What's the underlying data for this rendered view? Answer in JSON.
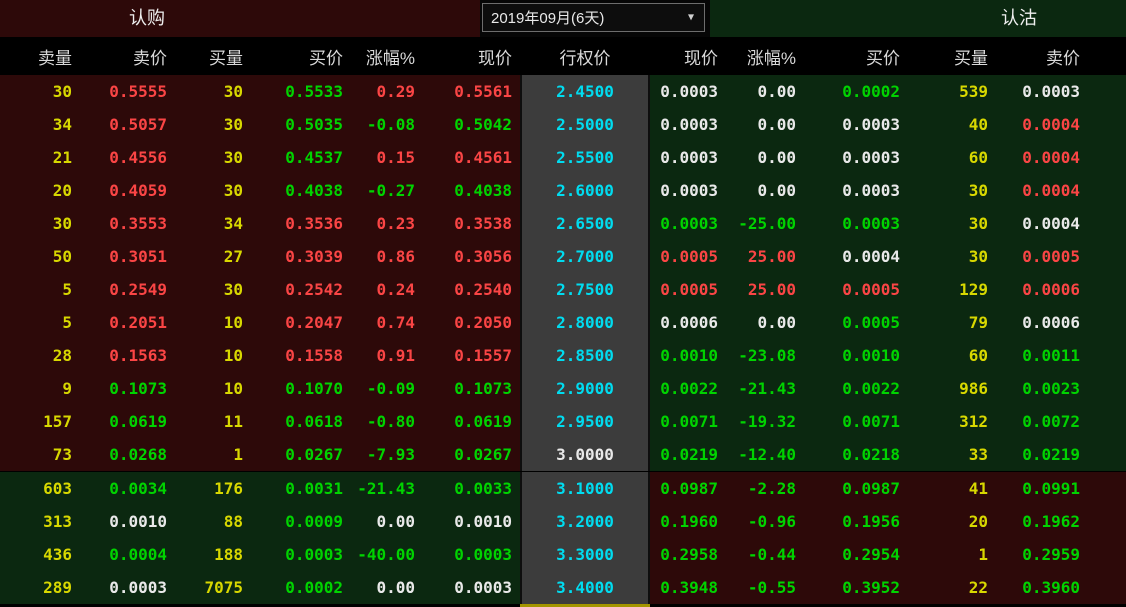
{
  "titles": {
    "call": "认购",
    "put": "认沽"
  },
  "dropdown": {
    "value": "2019年09月(6天)",
    "arrow": "▼"
  },
  "headers": {
    "left": [
      "卖量",
      "卖价",
      "买量",
      "买价",
      "涨幅%",
      "现价"
    ],
    "strike": "行权价",
    "right": [
      "现价",
      "涨幅%",
      "买价",
      "买量",
      "卖价"
    ]
  },
  "colors": {
    "text": {
      "yellow": "#d8d800",
      "red": "#fa4545",
      "green": "#00d300",
      "white": "#e9e9e9",
      "cyan": "#00dcf0"
    },
    "bg": {
      "call_zone": "#2d0909",
      "put_zone": "#0b2810",
      "strike_column": "#3c3c3c",
      "header": "#000000"
    },
    "scroll_indicator": "#a39500"
  },
  "rows": [
    {
      "strike": "2.4500",
      "strike_color": "cyan",
      "zone": "upper",
      "call": [
        [
          "30",
          "yellow"
        ],
        [
          "0.5555",
          "red"
        ],
        [
          "30",
          "yellow"
        ],
        [
          "0.5533",
          "green"
        ],
        [
          "0.29",
          "red"
        ],
        [
          "0.5561",
          "red"
        ]
      ],
      "put": [
        [
          "0.0003",
          "white"
        ],
        [
          "0.00",
          "white"
        ],
        [
          "0.0002",
          "green"
        ],
        [
          "539",
          "yellow"
        ],
        [
          "0.0003",
          "white"
        ]
      ]
    },
    {
      "strike": "2.5000",
      "strike_color": "cyan",
      "zone": "upper",
      "call": [
        [
          "34",
          "yellow"
        ],
        [
          "0.5057",
          "red"
        ],
        [
          "30",
          "yellow"
        ],
        [
          "0.5035",
          "green"
        ],
        [
          "-0.08",
          "green"
        ],
        [
          "0.5042",
          "green"
        ]
      ],
      "put": [
        [
          "0.0003",
          "white"
        ],
        [
          "0.00",
          "white"
        ],
        [
          "0.0003",
          "white"
        ],
        [
          "40",
          "yellow"
        ],
        [
          "0.0004",
          "red"
        ]
      ]
    },
    {
      "strike": "2.5500",
      "strike_color": "cyan",
      "zone": "upper",
      "call": [
        [
          "21",
          "yellow"
        ],
        [
          "0.4556",
          "red"
        ],
        [
          "30",
          "yellow"
        ],
        [
          "0.4537",
          "green"
        ],
        [
          "0.15",
          "red"
        ],
        [
          "0.4561",
          "red"
        ]
      ],
      "put": [
        [
          "0.0003",
          "white"
        ],
        [
          "0.00",
          "white"
        ],
        [
          "0.0003",
          "white"
        ],
        [
          "60",
          "yellow"
        ],
        [
          "0.0004",
          "red"
        ]
      ]
    },
    {
      "strike": "2.6000",
      "strike_color": "cyan",
      "zone": "upper",
      "call": [
        [
          "20",
          "yellow"
        ],
        [
          "0.4059",
          "red"
        ],
        [
          "30",
          "yellow"
        ],
        [
          "0.4038",
          "green"
        ],
        [
          "-0.27",
          "green"
        ],
        [
          "0.4038",
          "green"
        ]
      ],
      "put": [
        [
          "0.0003",
          "white"
        ],
        [
          "0.00",
          "white"
        ],
        [
          "0.0003",
          "white"
        ],
        [
          "30",
          "yellow"
        ],
        [
          "0.0004",
          "red"
        ]
      ]
    },
    {
      "strike": "2.6500",
      "strike_color": "cyan",
      "zone": "upper",
      "call": [
        [
          "30",
          "yellow"
        ],
        [
          "0.3553",
          "red"
        ],
        [
          "34",
          "yellow"
        ],
        [
          "0.3536",
          "red"
        ],
        [
          "0.23",
          "red"
        ],
        [
          "0.3538",
          "red"
        ]
      ],
      "put": [
        [
          "0.0003",
          "green"
        ],
        [
          "-25.00",
          "green"
        ],
        [
          "0.0003",
          "green"
        ],
        [
          "30",
          "yellow"
        ],
        [
          "0.0004",
          "white"
        ]
      ]
    },
    {
      "strike": "2.7000",
      "strike_color": "cyan",
      "zone": "upper",
      "call": [
        [
          "50",
          "yellow"
        ],
        [
          "0.3051",
          "red"
        ],
        [
          "27",
          "yellow"
        ],
        [
          "0.3039",
          "red"
        ],
        [
          "0.86",
          "red"
        ],
        [
          "0.3056",
          "red"
        ]
      ],
      "put": [
        [
          "0.0005",
          "red"
        ],
        [
          "25.00",
          "red"
        ],
        [
          "0.0004",
          "white"
        ],
        [
          "30",
          "yellow"
        ],
        [
          "0.0005",
          "red"
        ]
      ]
    },
    {
      "strike": "2.7500",
      "strike_color": "cyan",
      "zone": "upper",
      "call": [
        [
          "5",
          "yellow"
        ],
        [
          "0.2549",
          "red"
        ],
        [
          "30",
          "yellow"
        ],
        [
          "0.2542",
          "red"
        ],
        [
          "0.24",
          "red"
        ],
        [
          "0.2540",
          "red"
        ]
      ],
      "put": [
        [
          "0.0005",
          "red"
        ],
        [
          "25.00",
          "red"
        ],
        [
          "0.0005",
          "red"
        ],
        [
          "129",
          "yellow"
        ],
        [
          "0.0006",
          "red"
        ]
      ]
    },
    {
      "strike": "2.8000",
      "strike_color": "cyan",
      "zone": "upper",
      "call": [
        [
          "5",
          "yellow"
        ],
        [
          "0.2051",
          "red"
        ],
        [
          "10",
          "yellow"
        ],
        [
          "0.2047",
          "red"
        ],
        [
          "0.74",
          "red"
        ],
        [
          "0.2050",
          "red"
        ]
      ],
      "put": [
        [
          "0.0006",
          "white"
        ],
        [
          "0.00",
          "white"
        ],
        [
          "0.0005",
          "green"
        ],
        [
          "79",
          "yellow"
        ],
        [
          "0.0006",
          "white"
        ]
      ]
    },
    {
      "strike": "2.8500",
      "strike_color": "cyan",
      "zone": "upper",
      "call": [
        [
          "28",
          "yellow"
        ],
        [
          "0.1563",
          "red"
        ],
        [
          "10",
          "yellow"
        ],
        [
          "0.1558",
          "red"
        ],
        [
          "0.91",
          "red"
        ],
        [
          "0.1557",
          "red"
        ]
      ],
      "put": [
        [
          "0.0010",
          "green"
        ],
        [
          "-23.08",
          "green"
        ],
        [
          "0.0010",
          "green"
        ],
        [
          "60",
          "yellow"
        ],
        [
          "0.0011",
          "green"
        ]
      ]
    },
    {
      "strike": "2.9000",
      "strike_color": "cyan",
      "zone": "upper",
      "call": [
        [
          "9",
          "yellow"
        ],
        [
          "0.1073",
          "green"
        ],
        [
          "10",
          "yellow"
        ],
        [
          "0.1070",
          "green"
        ],
        [
          "-0.09",
          "green"
        ],
        [
          "0.1073",
          "green"
        ]
      ],
      "put": [
        [
          "0.0022",
          "green"
        ],
        [
          "-21.43",
          "green"
        ],
        [
          "0.0022",
          "green"
        ],
        [
          "986",
          "yellow"
        ],
        [
          "0.0023",
          "green"
        ]
      ]
    },
    {
      "strike": "2.9500",
      "strike_color": "cyan",
      "zone": "upper",
      "call": [
        [
          "157",
          "yellow"
        ],
        [
          "0.0619",
          "green"
        ],
        [
          "11",
          "yellow"
        ],
        [
          "0.0618",
          "green"
        ],
        [
          "-0.80",
          "green"
        ],
        [
          "0.0619",
          "green"
        ]
      ],
      "put": [
        [
          "0.0071",
          "green"
        ],
        [
          "-19.32",
          "green"
        ],
        [
          "0.0071",
          "green"
        ],
        [
          "312",
          "yellow"
        ],
        [
          "0.0072",
          "green"
        ]
      ]
    },
    {
      "strike": "3.0000",
      "strike_color": "white",
      "zone": "upper",
      "call": [
        [
          "73",
          "yellow"
        ],
        [
          "0.0268",
          "green"
        ],
        [
          "1",
          "yellow"
        ],
        [
          "0.0267",
          "green"
        ],
        [
          "-7.93",
          "green"
        ],
        [
          "0.0267",
          "green"
        ]
      ],
      "put": [
        [
          "0.0219",
          "green"
        ],
        [
          "-12.40",
          "green"
        ],
        [
          "0.0218",
          "green"
        ],
        [
          "33",
          "yellow"
        ],
        [
          "0.0219",
          "green"
        ]
      ]
    },
    {
      "strike": "3.1000",
      "strike_color": "cyan",
      "zone": "lower",
      "call": [
        [
          "603",
          "yellow"
        ],
        [
          "0.0034",
          "green"
        ],
        [
          "176",
          "yellow"
        ],
        [
          "0.0031",
          "green"
        ],
        [
          "-21.43",
          "green"
        ],
        [
          "0.0033",
          "green"
        ]
      ],
      "put": [
        [
          "0.0987",
          "green"
        ],
        [
          "-2.28",
          "green"
        ],
        [
          "0.0987",
          "green"
        ],
        [
          "41",
          "yellow"
        ],
        [
          "0.0991",
          "green"
        ]
      ]
    },
    {
      "strike": "3.2000",
      "strike_color": "cyan",
      "zone": "lower",
      "call": [
        [
          "313",
          "yellow"
        ],
        [
          "0.0010",
          "white"
        ],
        [
          "88",
          "yellow"
        ],
        [
          "0.0009",
          "green"
        ],
        [
          "0.00",
          "white"
        ],
        [
          "0.0010",
          "white"
        ]
      ],
      "put": [
        [
          "0.1960",
          "green"
        ],
        [
          "-0.96",
          "green"
        ],
        [
          "0.1956",
          "green"
        ],
        [
          "20",
          "yellow"
        ],
        [
          "0.1962",
          "green"
        ]
      ]
    },
    {
      "strike": "3.3000",
      "strike_color": "cyan",
      "zone": "lower",
      "call": [
        [
          "436",
          "yellow"
        ],
        [
          "0.0004",
          "green"
        ],
        [
          "188",
          "yellow"
        ],
        [
          "0.0003",
          "green"
        ],
        [
          "-40.00",
          "green"
        ],
        [
          "0.0003",
          "green"
        ]
      ],
      "put": [
        [
          "0.2958",
          "green"
        ],
        [
          "-0.44",
          "green"
        ],
        [
          "0.2954",
          "green"
        ],
        [
          "1",
          "yellow"
        ],
        [
          "0.2959",
          "green"
        ]
      ]
    },
    {
      "strike": "3.4000",
      "strike_color": "cyan",
      "zone": "lower",
      "call": [
        [
          "289",
          "yellow"
        ],
        [
          "0.0003",
          "white"
        ],
        [
          "7075",
          "yellow"
        ],
        [
          "0.0002",
          "green"
        ],
        [
          "0.00",
          "white"
        ],
        [
          "0.0003",
          "white"
        ]
      ],
      "put": [
        [
          "0.3948",
          "green"
        ],
        [
          "-0.55",
          "green"
        ],
        [
          "0.3952",
          "green"
        ],
        [
          "22",
          "yellow"
        ],
        [
          "0.3960",
          "green"
        ]
      ]
    }
  ]
}
